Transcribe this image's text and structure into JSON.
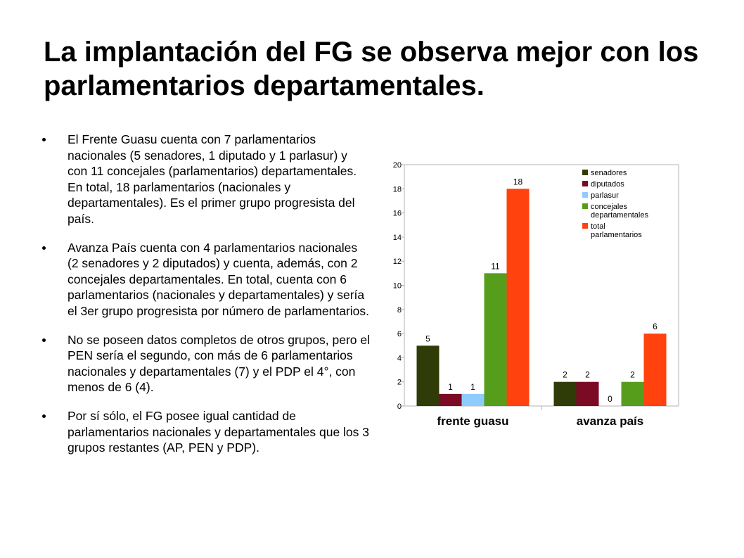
{
  "slide": {
    "title": "La implantación del FG se observa mejor con los parlamentarios departamentales.",
    "bullets": [
      "El Frente Guasu cuenta con 7 parlamentarios nacionales (5 senadores, 1 diputado y 1 parlasur) y con 11 concejales (parlamentarios) departamentales. En total, 18 parlamentarios (nacionales y departamentales). Es el primer grupo progresista del país.",
      "Avanza País cuenta con 4 parlamentarios nacionales (2 senadores y 2 diputados) y cuenta, además, con 2 concejales departamentales. En total, cuenta con 6 parlamentarios (nacionales y departamentales) y sería el 3er grupo progresista por número de parlamentarios.",
      "No se poseen datos completos de otros grupos, pero el PEN sería el segundo, con más de 6 parlamentarios nacionales y departamentales (7) y el PDP el 4°, con menos de 6 (4).",
      "Por sí sólo, el FG posee igual cantidad de parlamentarios nacionales y departamentales que los 3 grupos restantes (AP, PEN y PDP)."
    ]
  },
  "chart_data": {
    "type": "bar",
    "title": "",
    "xlabel": "",
    "ylabel": "",
    "categories": [
      "frente guasu",
      "avanza país"
    ],
    "ylim": [
      0,
      20
    ],
    "yticks": [
      0,
      2,
      4,
      6,
      8,
      10,
      12,
      14,
      16,
      18,
      20
    ],
    "grid": false,
    "legend_position": "top-right",
    "series": [
      {
        "name": "senadores",
        "color": "#2f3c07",
        "values": [
          5,
          2
        ]
      },
      {
        "name": "diputados",
        "color": "#7b0a24",
        "values": [
          1,
          2
        ]
      },
      {
        "name": "parlasur",
        "color": "#8ecbff",
        "values": [
          1,
          0
        ]
      },
      {
        "name": "concejales departamentales",
        "legend_lines": [
          "concejales",
          "departamentales"
        ],
        "color": "#579d1c",
        "values": [
          11,
          2
        ]
      },
      {
        "name": "total parlamentarios",
        "legend_lines": [
          "total",
          "parlamentarios"
        ],
        "color": "#ff420e",
        "values": [
          18,
          6
        ]
      }
    ]
  }
}
